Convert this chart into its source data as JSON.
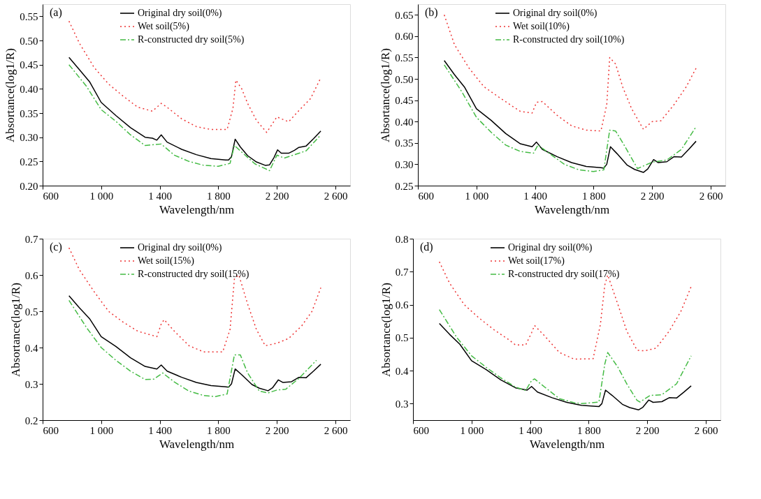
{
  "chart_data": [
    {
      "type": "line",
      "annotations": [
        "(a)"
      ],
      "xlabel": "Wavelength/nm",
      "ylabel": "Absortance(log1/R)",
      "xlim": [
        600,
        2700
      ],
      "xticks": [
        600,
        {
          "value": 1000,
          "label": "1 000"
        },
        {
          "value": 1400,
          "label": "1 400"
        },
        {
          "value": 1800,
          "label": "1 800"
        },
        {
          "value": 2200,
          "label": "2 200"
        },
        {
          "value": 2600,
          "label": "2 600"
        }
      ],
      "ylim": [
        0.2,
        0.575
      ],
      "yticks": [
        {
          "value": 0.2,
          "label": "0.20"
        },
        0.25,
        {
          "value": 0.3,
          "label": "0.30"
        },
        0.35,
        {
          "value": 0.4,
          "label": "0.40"
        },
        0.45,
        {
          "value": 0.5,
          "label": "0.50"
        },
        0.55
      ],
      "grid": false,
      "legend": "top",
      "series": [
        {
          "name": "Original dry soil(0%)",
          "color": "#000000",
          "line_style": "solid",
          "x": [
            780,
            850,
            920,
            1000,
            1100,
            1200,
            1300,
            1350,
            1380,
            1410,
            1450,
            1550,
            1650,
            1750,
            1850,
            1870,
            1890,
            1915,
            1950,
            2000,
            2060,
            2120,
            2150,
            2180,
            2205,
            2230,
            2280,
            2320,
            2350,
            2400,
            2450,
            2500
          ],
          "values": [
            0.465,
            0.44,
            0.415,
            0.372,
            0.345,
            0.32,
            0.3,
            0.298,
            0.294,
            0.305,
            0.29,
            0.275,
            0.264,
            0.256,
            0.253,
            0.253,
            0.26,
            0.296,
            0.28,
            0.262,
            0.249,
            0.242,
            0.243,
            0.258,
            0.274,
            0.267,
            0.267,
            0.273,
            0.279,
            0.282,
            0.297,
            0.313
          ]
        },
        {
          "name": "Wet soil(5%)",
          "color": "#ee3333",
          "line_style": "dotted",
          "x": [
            780,
            850,
            950,
            1050,
            1150,
            1250,
            1350,
            1410,
            1450,
            1550,
            1650,
            1750,
            1860,
            1900,
            1920,
            1960,
            2000,
            2060,
            2130,
            2200,
            2280,
            2350,
            2430,
            2500
          ],
          "values": [
            0.54,
            0.495,
            0.445,
            0.41,
            0.385,
            0.362,
            0.354,
            0.37,
            0.362,
            0.338,
            0.322,
            0.316,
            0.316,
            0.36,
            0.418,
            0.4,
            0.37,
            0.335,
            0.31,
            0.342,
            0.332,
            0.355,
            0.38,
            0.423
          ]
        },
        {
          "name": "R-constructed dry soil(5%)",
          "color": "#44bb44",
          "line_style": "dashed",
          "x": [
            780,
            900,
            1000,
            1100,
            1200,
            1300,
            1410,
            1500,
            1600,
            1700,
            1800,
            1880,
            1910,
            1950,
            2050,
            2150,
            2200,
            2250,
            2300,
            2400,
            2500
          ],
          "values": [
            0.45,
            0.405,
            0.357,
            0.333,
            0.305,
            0.283,
            0.286,
            0.263,
            0.25,
            0.242,
            0.24,
            0.246,
            0.283,
            0.272,
            0.245,
            0.231,
            0.263,
            0.257,
            0.262,
            0.272,
            0.305
          ]
        }
      ]
    },
    {
      "type": "line",
      "annotations": [
        "(b)"
      ],
      "xlabel": "Wavelength/nm",
      "ylabel": "Absortance(log1/R)",
      "xlim": [
        600,
        2700
      ],
      "xticks": [
        600,
        {
          "value": 1000,
          "label": "1 000"
        },
        {
          "value": 1400,
          "label": "1 400"
        },
        {
          "value": 1800,
          "label": "1 800"
        },
        {
          "value": 2200,
          "label": "2 200"
        },
        {
          "value": 2600,
          "label": "2 600"
        }
      ],
      "ylim": [
        0.25,
        0.675
      ],
      "yticks": [
        0.25,
        {
          "value": 0.3,
          "label": "0.30"
        },
        0.35,
        {
          "value": 0.4,
          "label": "0.40"
        },
        0.45,
        {
          "value": 0.5,
          "label": "0.50"
        },
        0.55,
        {
          "value": 0.6,
          "label": "0.60"
        },
        0.65
      ],
      "grid": false,
      "legend": "top",
      "series": [
        {
          "name": "Original dry soil(0%)",
          "color": "#000000",
          "line_style": "solid",
          "x": [
            780,
            850,
            920,
            1000,
            1100,
            1200,
            1300,
            1380,
            1410,
            1450,
            1550,
            1650,
            1750,
            1850,
            1870,
            1890,
            1915,
            1960,
            2030,
            2080,
            2140,
            2170,
            2210,
            2240,
            2300,
            2350,
            2400,
            2450,
            2500
          ],
          "values": [
            0.543,
            0.51,
            0.48,
            0.43,
            0.403,
            0.372,
            0.348,
            0.341,
            0.352,
            0.335,
            0.318,
            0.304,
            0.295,
            0.292,
            0.291,
            0.3,
            0.341,
            0.325,
            0.298,
            0.288,
            0.281,
            0.289,
            0.311,
            0.304,
            0.306,
            0.318,
            0.317,
            0.335,
            0.354
          ]
        },
        {
          "name": "Wet soil(10%)",
          "color": "#ee3333",
          "line_style": "dotted",
          "x": [
            780,
            850,
            950,
            1050,
            1150,
            1250,
            1300,
            1380,
            1410,
            1450,
            1550,
            1650,
            1750,
            1850,
            1890,
            1910,
            1950,
            2000,
            2060,
            2140,
            2200,
            2260,
            2350,
            2430,
            2500
          ],
          "values": [
            0.65,
            0.58,
            0.525,
            0.482,
            0.458,
            0.435,
            0.424,
            0.42,
            0.445,
            0.447,
            0.415,
            0.39,
            0.38,
            0.378,
            0.44,
            0.55,
            0.535,
            0.48,
            0.43,
            0.382,
            0.4,
            0.402,
            0.44,
            0.48,
            0.525
          ]
        },
        {
          "name": "R-constructed dry soil(10%)",
          "color": "#44bb44",
          "line_style": "dashed",
          "x": [
            780,
            900,
            1000,
            1100,
            1200,
            1300,
            1390,
            1420,
            1500,
            1600,
            1700,
            1800,
            1870,
            1910,
            1950,
            2000,
            2100,
            2200,
            2300,
            2400,
            2500
          ],
          "values": [
            0.533,
            0.47,
            0.41,
            0.375,
            0.345,
            0.33,
            0.326,
            0.345,
            0.325,
            0.3,
            0.287,
            0.283,
            0.287,
            0.38,
            0.378,
            0.35,
            0.29,
            0.305,
            0.31,
            0.335,
            0.388
          ]
        }
      ]
    },
    {
      "type": "line",
      "annotations": [
        "(c)"
      ],
      "xlabel": "Wavelength/nm",
      "ylabel": "Absortance(log1/R)",
      "xlim": [
        600,
        2700
      ],
      "xticks": [
        600,
        {
          "value": 1000,
          "label": "1 000"
        },
        {
          "value": 1400,
          "label": "1 400"
        },
        {
          "value": 1800,
          "label": "1 800"
        },
        {
          "value": 2200,
          "label": "2 200"
        },
        {
          "value": 2600,
          "label": "2 600"
        }
      ],
      "ylim": [
        0.2,
        0.7
      ],
      "yticks": [
        0.2,
        0.3,
        0.4,
        0.5,
        0.6,
        0.7
      ],
      "grid": false,
      "legend": "top",
      "series": [
        {
          "name": "Original dry soil(0%)",
          "color": "#000000",
          "line_style": "solid",
          "x": [
            780,
            850,
            920,
            1000,
            1100,
            1200,
            1300,
            1380,
            1410,
            1450,
            1550,
            1650,
            1750,
            1850,
            1870,
            1890,
            1915,
            1960,
            2030,
            2080,
            2140,
            2170,
            2210,
            2240,
            2300,
            2350,
            2400,
            2450,
            2500
          ],
          "values": [
            0.543,
            0.51,
            0.48,
            0.43,
            0.403,
            0.372,
            0.348,
            0.341,
            0.352,
            0.335,
            0.318,
            0.304,
            0.295,
            0.292,
            0.291,
            0.3,
            0.341,
            0.325,
            0.298,
            0.288,
            0.281,
            0.289,
            0.311,
            0.304,
            0.306,
            0.318,
            0.317,
            0.335,
            0.354
          ]
        },
        {
          "name": "Wet soil(15%)",
          "color": "#ee3333",
          "line_style": "dotted",
          "x": [
            780,
            850,
            950,
            1050,
            1150,
            1250,
            1380,
            1410,
            1430,
            1500,
            1600,
            1700,
            1830,
            1880,
            1910,
            1940,
            2000,
            2060,
            2120,
            2200,
            2280,
            2370,
            2440,
            2500
          ],
          "values": [
            0.675,
            0.615,
            0.555,
            0.5,
            0.47,
            0.445,
            0.43,
            0.465,
            0.477,
            0.445,
            0.405,
            0.388,
            0.388,
            0.45,
            0.59,
            0.6,
            0.52,
            0.45,
            0.405,
            0.412,
            0.425,
            0.46,
            0.5,
            0.565
          ]
        },
        {
          "name": "R-constructed dry soil(15%)",
          "color": "#44bb44",
          "line_style": "dashed",
          "x": [
            780,
            900,
            1000,
            1100,
            1200,
            1300,
            1360,
            1420,
            1500,
            1600,
            1700,
            1780,
            1860,
            1910,
            1950,
            2000,
            2080,
            2140,
            2200,
            2260,
            2350,
            2470
          ],
          "values": [
            0.53,
            0.455,
            0.4,
            0.365,
            0.335,
            0.312,
            0.313,
            0.33,
            0.305,
            0.28,
            0.268,
            0.265,
            0.272,
            0.38,
            0.38,
            0.33,
            0.28,
            0.275,
            0.283,
            0.285,
            0.315,
            0.365
          ]
        }
      ]
    },
    {
      "type": "line",
      "annotations": [
        "(d)"
      ],
      "xlabel": "Wavelength/nm",
      "ylabel": "Absortance(log1/R)",
      "xlim": [
        600,
        2700
      ],
      "xticks": [
        600,
        {
          "value": 1000,
          "label": "1 000"
        },
        {
          "value": 1400,
          "label": "1 400"
        },
        {
          "value": 1800,
          "label": "1 800"
        },
        {
          "value": 2200,
          "label": "2 200"
        },
        {
          "value": 2600,
          "label": "2 600"
        }
      ],
      "ylim": [
        0.25,
        0.8
      ],
      "yticks": [
        0.3,
        0.4,
        0.5,
        0.6,
        0.7,
        0.8
      ],
      "grid": false,
      "legend": "top",
      "series": [
        {
          "name": "Original dry soil(0%)",
          "color": "#000000",
          "line_style": "solid",
          "x": [
            780,
            850,
            920,
            1000,
            1100,
            1200,
            1300,
            1380,
            1410,
            1450,
            1550,
            1650,
            1750,
            1850,
            1870,
            1890,
            1915,
            1960,
            2030,
            2080,
            2140,
            2170,
            2210,
            2240,
            2300,
            2350,
            2400,
            2450,
            2500
          ],
          "values": [
            0.543,
            0.51,
            0.48,
            0.43,
            0.403,
            0.372,
            0.348,
            0.341,
            0.352,
            0.335,
            0.318,
            0.304,
            0.295,
            0.292,
            0.291,
            0.3,
            0.341,
            0.325,
            0.298,
            0.288,
            0.281,
            0.289,
            0.311,
            0.304,
            0.306,
            0.318,
            0.317,
            0.335,
            0.354
          ]
        },
        {
          "name": "Wet soil(17%)",
          "color": "#ee3333",
          "line_style": "dotted",
          "x": [
            780,
            850,
            950,
            1050,
            1150,
            1250,
            1300,
            1370,
            1410,
            1430,
            1500,
            1600,
            1700,
            1830,
            1880,
            1910,
            1930,
            2000,
            2060,
            2130,
            2180,
            2260,
            2350,
            2430,
            2500
          ],
          "values": [
            0.73,
            0.665,
            0.6,
            0.56,
            0.525,
            0.495,
            0.478,
            0.478,
            0.515,
            0.537,
            0.505,
            0.455,
            0.435,
            0.436,
            0.54,
            0.66,
            0.69,
            0.6,
            0.52,
            0.462,
            0.46,
            0.468,
            0.52,
            0.58,
            0.655
          ]
        },
        {
          "name": "R-constructed dry soil(17%)",
          "color": "#44bb44",
          "line_style": "dashed",
          "x": [
            780,
            900,
            1000,
            1100,
            1200,
            1300,
            1370,
            1410,
            1430,
            1500,
            1600,
            1700,
            1750,
            1870,
            1910,
            1930,
            2000,
            2060,
            2130,
            2150,
            2220,
            2300,
            2400,
            2500
          ],
          "values": [
            0.585,
            0.5,
            0.445,
            0.41,
            0.378,
            0.35,
            0.34,
            0.37,
            0.375,
            0.35,
            0.315,
            0.303,
            0.3,
            0.305,
            0.42,
            0.455,
            0.41,
            0.36,
            0.31,
            0.305,
            0.325,
            0.327,
            0.36,
            0.445
          ]
        }
      ]
    }
  ]
}
